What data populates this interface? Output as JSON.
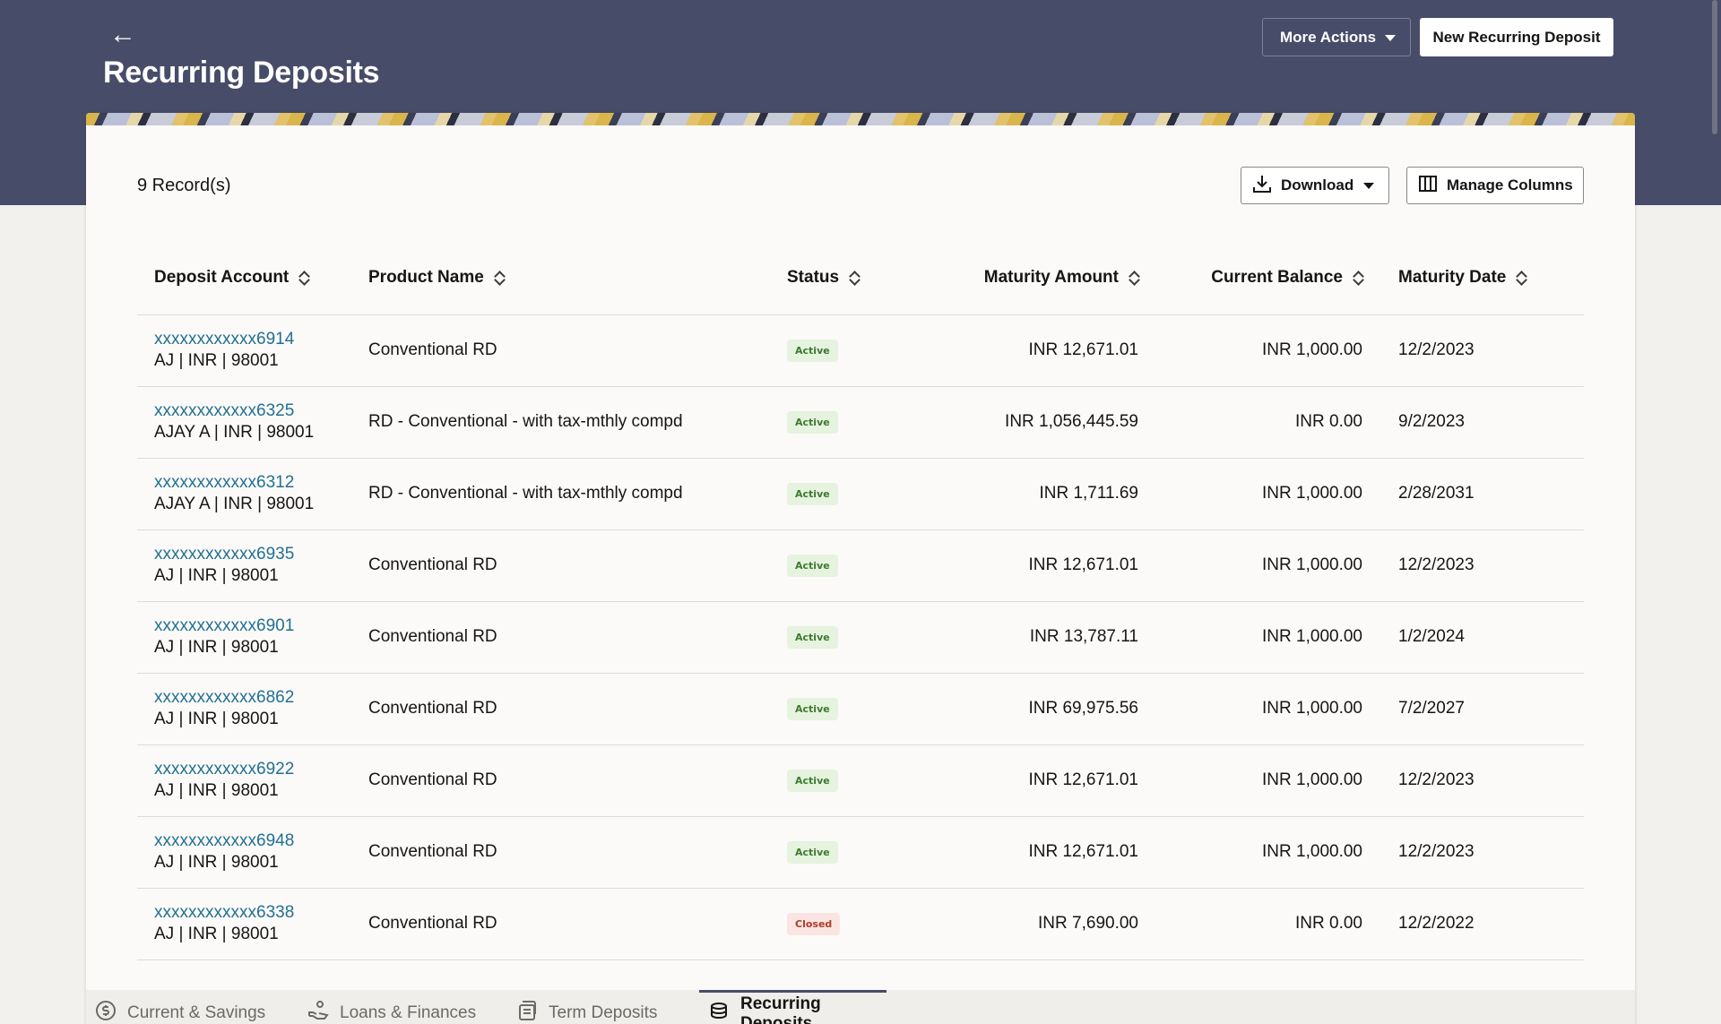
{
  "header": {
    "back_icon": "arrow-left-icon",
    "title": "Recurring Deposits",
    "more_actions_label": "More Actions",
    "new_deposit_label": "New Recurring Deposit"
  },
  "toolbar": {
    "records_text": "9 Record(s)",
    "download_label": "Download",
    "manage_columns_label": "Manage Columns"
  },
  "table": {
    "columns": [
      "Deposit Account",
      "Product Name",
      "Status",
      "Maturity Amount",
      "Current Balance",
      "Maturity Date"
    ],
    "rows": [
      {
        "account": "xxxxxxxxxxxx6914",
        "details": "AJ | INR | 98001",
        "product": "Conventional RD",
        "status": "Active",
        "maturity_amount": "INR 12,671.01",
        "current_balance": "INR 1,000.00",
        "maturity_date": "12/2/2023"
      },
      {
        "account": "xxxxxxxxxxxx6325",
        "details": "AJAY A | INR | 98001",
        "product": "RD - Conventional - with tax-mthly compd",
        "status": "Active",
        "maturity_amount": "INR 1,056,445.59",
        "current_balance": "INR 0.00",
        "maturity_date": "9/2/2023"
      },
      {
        "account": "xxxxxxxxxxxx6312",
        "details": "AJAY A | INR | 98001",
        "product": "RD - Conventional - with tax-mthly compd",
        "status": "Active",
        "maturity_amount": "INR 1,711.69",
        "current_balance": "INR 1,000.00",
        "maturity_date": "2/28/2031"
      },
      {
        "account": "xxxxxxxxxxxx6935",
        "details": "AJ | INR | 98001",
        "product": "Conventional RD",
        "status": "Active",
        "maturity_amount": "INR 12,671.01",
        "current_balance": "INR 1,000.00",
        "maturity_date": "12/2/2023"
      },
      {
        "account": "xxxxxxxxxxxx6901",
        "details": "AJ | INR | 98001",
        "product": "Conventional RD",
        "status": "Active",
        "maturity_amount": "INR 13,787.11",
        "current_balance": "INR 1,000.00",
        "maturity_date": "1/2/2024"
      },
      {
        "account": "xxxxxxxxxxxx6862",
        "details": "AJ | INR | 98001",
        "product": "Conventional RD",
        "status": "Active",
        "maturity_amount": "INR 69,975.56",
        "current_balance": "INR 1,000.00",
        "maturity_date": "7/2/2027"
      },
      {
        "account": "xxxxxxxxxxxx6922",
        "details": "AJ | INR | 98001",
        "product": "Conventional RD",
        "status": "Active",
        "maturity_amount": "INR 12,671.01",
        "current_balance": "INR 1,000.00",
        "maturity_date": "12/2/2023"
      },
      {
        "account": "xxxxxxxxxxxx6948",
        "details": "AJ | INR | 98001",
        "product": "Conventional RD",
        "status": "Active",
        "maturity_amount": "INR 12,671.01",
        "current_balance": "INR 1,000.00",
        "maturity_date": "12/2/2023"
      },
      {
        "account": "xxxxxxxxxxxx6338",
        "details": "AJ | INR | 98001",
        "product": "Conventional RD",
        "status": "Closed",
        "maturity_amount": "INR 7,690.00",
        "current_balance": "INR 0.00",
        "maturity_date": "12/2/2022"
      }
    ]
  },
  "tabs": [
    {
      "label": "Current & Savings",
      "icon": "dollar-circle-icon",
      "active": false
    },
    {
      "label": "Loans & Finances",
      "icon": "hand-coins-icon",
      "active": false
    },
    {
      "label": "Term Deposits",
      "icon": "document-stack-icon",
      "active": false
    },
    {
      "label": "Recurring Deposits",
      "icon": "coin-stack-icon",
      "active": true
    }
  ],
  "colors": {
    "header_bg": "#474d68",
    "link": "#227093",
    "active_badge_bg": "#e5f3df",
    "active_badge_text": "#3e7a2f",
    "closed_badge_bg": "#fbe5e2",
    "closed_badge_text": "#b03a2a"
  }
}
